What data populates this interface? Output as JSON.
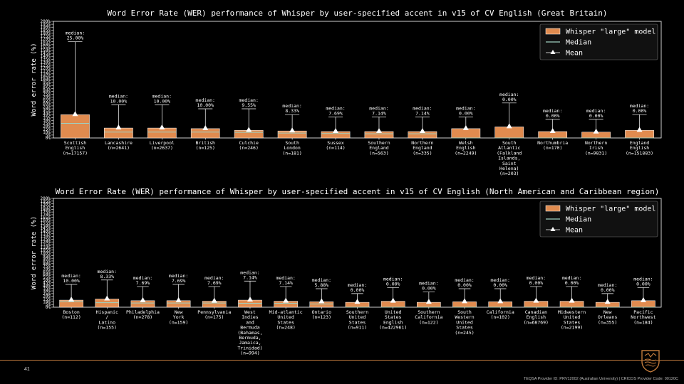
{
  "page": {
    "page_number": "41",
    "footer": "TEQSA Provider ID: PRV12002 (Australian University) | CRICOS Provider Code: 00120C",
    "logo_icon": "university-crest-icon"
  },
  "colors": {
    "bar": "#e08b4f",
    "bar_edge": "#ffffff",
    "median": "#9fd0c0",
    "whisker": "#ffffff",
    "background": "#000000"
  },
  "chart_data": [
    {
      "type": "bar",
      "title": "Word Error Rate (WER) performance of Whisper by user-specified accent in v15 of CV English (Great Britain)",
      "ylabel": "Word error rate (%)",
      "ylim": [
        0,
        200
      ],
      "yticks": [
        "0%",
        "5%",
        "10%",
        "15%",
        "20%",
        "25%",
        "30%",
        "35%",
        "40%",
        "45%",
        "50%",
        "55%",
        "60%",
        "65%",
        "70%",
        "75%",
        "80%",
        "85%",
        "90%",
        "95%",
        "100%",
        "105%",
        "110%",
        "115%",
        "120%",
        "125%",
        "130%",
        "135%",
        "140%",
        "145%",
        "150%",
        "155%",
        "160%",
        "165%",
        "170%",
        "175%",
        "180%",
        "185%",
        "190%",
        "195%",
        "200%"
      ],
      "legend": {
        "placement": "top-right",
        "entries": [
          "Whisper \"large\" model",
          "Median",
          "Mean"
        ]
      },
      "categories": [
        {
          "label": [
            "Scottish",
            "English",
            "(n=17157)"
          ],
          "mean": 40,
          "median": 25.0,
          "median_text": "median:",
          "median_value_text": "25.00%",
          "upper": 165
        },
        {
          "label": [
            "Lancashire",
            "(n=2641)"
          ],
          "mean": 17,
          "median": 10.0,
          "median_text": "median:",
          "median_value_text": "10.00%",
          "upper": 57
        },
        {
          "label": [
            "Liverpool",
            "(n=2637)"
          ],
          "mean": 17,
          "median": 10.0,
          "median_text": "median:",
          "median_value_text": "10.00%",
          "upper": 57
        },
        {
          "label": [
            "British",
            "(n=125)"
          ],
          "mean": 16,
          "median": 10.0,
          "median_text": "median:",
          "median_value_text": "10.00%",
          "upper": 50
        },
        {
          "label": [
            "Culchie",
            "(n=246)"
          ],
          "mean": 13,
          "median": 9.55,
          "median_text": "median:",
          "median_value_text": "9.55%",
          "upper": 50
        },
        {
          "label": [
            "South",
            "London",
            "(n=181)"
          ],
          "mean": 12,
          "median": 8.33,
          "median_text": "median:",
          "median_value_text": "8.33%",
          "upper": 40
        },
        {
          "label": [
            "Sussex",
            "(n=114)"
          ],
          "mean": 11,
          "median": 7.69,
          "median_text": "median:",
          "median_value_text": "7.69%",
          "upper": 36
        },
        {
          "label": [
            "Southern",
            "England",
            "(n=563)"
          ],
          "mean": 11,
          "median": 7.14,
          "median_text": "median:",
          "median_value_text": "7.14%",
          "upper": 36
        },
        {
          "label": [
            "Northern",
            "England",
            "(n=335)"
          ],
          "mean": 11,
          "median": 7.14,
          "median_text": "median:",
          "median_value_text": "7.14%",
          "upper": 36
        },
        {
          "label": [
            "Welsh",
            "English",
            "(n=2249)"
          ],
          "mean": 16,
          "median": 0.0,
          "median_text": "median:",
          "median_value_text": "0.00%",
          "upper": 36
        },
        {
          "label": [
            "South",
            "Atlantic",
            "(Falkland",
            "Islands,",
            "Saint",
            "Helena)",
            "(n=203)"
          ],
          "mean": 19,
          "median": 0.0,
          "median_text": "median:",
          "median_value_text": "0.00%",
          "upper": 60
        },
        {
          "label": [
            "Northumbria",
            "(n=170)"
          ],
          "mean": 11,
          "median": 0.0,
          "median_text": "median:",
          "median_value_text": "0.00%",
          "upper": 32
        },
        {
          "label": [
            "Northern",
            "Irish",
            "(n=9831)"
          ],
          "mean": 10,
          "median": 0.0,
          "median_text": "median:",
          "median_value_text": "0.00%",
          "upper": 32
        },
        {
          "label": [
            "England",
            "English",
            "(n=151883)"
          ],
          "mean": 13,
          "median": 0.0,
          "median_text": "median:",
          "median_value_text": "0.00%",
          "upper": 40
        }
      ]
    },
    {
      "type": "bar",
      "title": "Word Error Rate (WER) performance of Whisper by user-specified accent in v15 of CV English (North American and Caribbean region)",
      "ylabel": "Word error rate (%)",
      "ylim": [
        0,
        200
      ],
      "yticks": [
        "0%",
        "5%",
        "10%",
        "15%",
        "20%",
        "25%",
        "30%",
        "35%",
        "40%",
        "45%",
        "50%",
        "55%",
        "60%",
        "65%",
        "70%",
        "75%",
        "80%",
        "85%",
        "90%",
        "95%",
        "100%",
        "105%",
        "110%",
        "115%",
        "120%",
        "125%",
        "130%",
        "135%",
        "140%",
        "145%",
        "150%",
        "155%",
        "160%",
        "165%",
        "170%",
        "175%",
        "180%",
        "185%",
        "190%",
        "195%",
        "200%"
      ],
      "legend": {
        "placement": "top-right",
        "entries": [
          "Whisper \"large\" model",
          "Median",
          "Mean"
        ]
      },
      "categories": [
        {
          "label": [
            "Boston",
            "(n=112)"
          ],
          "mean": 13,
          "median": 10.0,
          "median_text": "median:",
          "median_value_text": "10.00%",
          "upper": 42
        },
        {
          "label": [
            "Hispanic",
            "/",
            "Latino",
            "(n=155)"
          ],
          "mean": 15,
          "median": 8.33,
          "median_text": "median:",
          "median_value_text": "8.33%",
          "upper": 50
        },
        {
          "label": [
            "Philadelphia",
            "(n=278)"
          ],
          "mean": 12,
          "median": 7.69,
          "median_text": "median:",
          "median_value_text": "7.69%",
          "upper": 38
        },
        {
          "label": [
            "New",
            "York",
            "(n=159)"
          ],
          "mean": 12,
          "median": 7.69,
          "median_text": "median:",
          "median_value_text": "7.69%",
          "upper": 42
        },
        {
          "label": [
            "Pennsylvania",
            "(n=175)"
          ],
          "mean": 11,
          "median": 7.69,
          "median_text": "median:",
          "median_value_text": "7.69%",
          "upper": 38
        },
        {
          "label": [
            "West",
            "Indies",
            "and",
            "Bermuda",
            "(Bahamas,",
            "Bermuda,",
            "Jamaica,",
            "Trinidad)",
            "(n=994)"
          ],
          "mean": 13,
          "median": 7.14,
          "median_text": "median:",
          "median_value_text": "7.14%",
          "upper": 48
        },
        {
          "label": [
            "Mid-atlantic",
            "United",
            "States",
            "(n=248)"
          ],
          "mean": 11,
          "median": 7.14,
          "median_text": "median:",
          "median_value_text": "7.14%",
          "upper": 38
        },
        {
          "label": [
            "Ontario",
            "(n=123)"
          ],
          "mean": 10,
          "median": 5.88,
          "median_text": "median:",
          "median_value_text": "5.88%",
          "upper": 34
        },
        {
          "label": [
            "Southern",
            "United",
            "States",
            "(n=911)"
          ],
          "mean": 9,
          "median": 0.0,
          "median_text": "median:",
          "median_value_text": "0.00%",
          "upper": 25
        },
        {
          "label": [
            "United",
            "States",
            "English",
            "(n=422961)"
          ],
          "mean": 11,
          "median": 0.0,
          "median_text": "median:",
          "median_value_text": "0.00%",
          "upper": 36
        },
        {
          "label": [
            "Southern",
            "California",
            "(n=122)"
          ],
          "mean": 9,
          "median": 0.0,
          "median_text": "median:",
          "median_value_text": "0.00%",
          "upper": 28
        },
        {
          "label": [
            "South",
            "Western",
            "United",
            "States",
            "(n=245)"
          ],
          "mean": 10,
          "median": 0.0,
          "median_text": "median:",
          "median_value_text": "0.00%",
          "upper": 34
        },
        {
          "label": [
            "California",
            "(n=102)"
          ],
          "mean": 10,
          "median": 0.0,
          "median_text": "median:",
          "median_value_text": "0.00%",
          "upper": 34
        },
        {
          "label": [
            "Canadian",
            "English",
            "(n=68769)"
          ],
          "mean": 11,
          "median": 0.0,
          "median_text": "median:",
          "median_value_text": "0.00%",
          "upper": 38
        },
        {
          "label": [
            "Midwestern",
            "United",
            "States",
            "(n=2199)"
          ],
          "mean": 11,
          "median": 0.0,
          "median_text": "median:",
          "median_value_text": "0.00%",
          "upper": 38
        },
        {
          "label": [
            "New",
            "Orleans",
            "(n=355)"
          ],
          "mean": 9,
          "median": 0.0,
          "median_text": "median:",
          "median_value_text": "0.00%",
          "upper": 25
        },
        {
          "label": [
            "Pacific",
            "Northwest",
            "(n=184)"
          ],
          "mean": 12,
          "median": 0.0,
          "median_text": "median:",
          "median_value_text": "0.00%",
          "upper": 36
        }
      ]
    }
  ]
}
